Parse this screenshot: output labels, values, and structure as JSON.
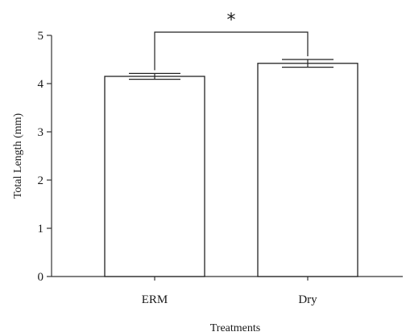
{
  "chart_data": {
    "type": "bar",
    "categories": [
      "ERM",
      "Dry"
    ],
    "values": [
      4.15,
      4.42
    ],
    "errors": [
      0.06,
      0.08
    ],
    "ylim": [
      0,
      5
    ],
    "yticks": [
      0,
      1,
      2,
      3,
      4,
      5
    ],
    "ylabel": "Total Length (mm)",
    "xlabel": "Treatments",
    "significance": {
      "between": [
        0,
        1
      ],
      "label": "*"
    },
    "grid": false,
    "legend": "none",
    "colors": {
      "bar_fill": "#ffffff",
      "bar_stroke": "#222222"
    }
  }
}
